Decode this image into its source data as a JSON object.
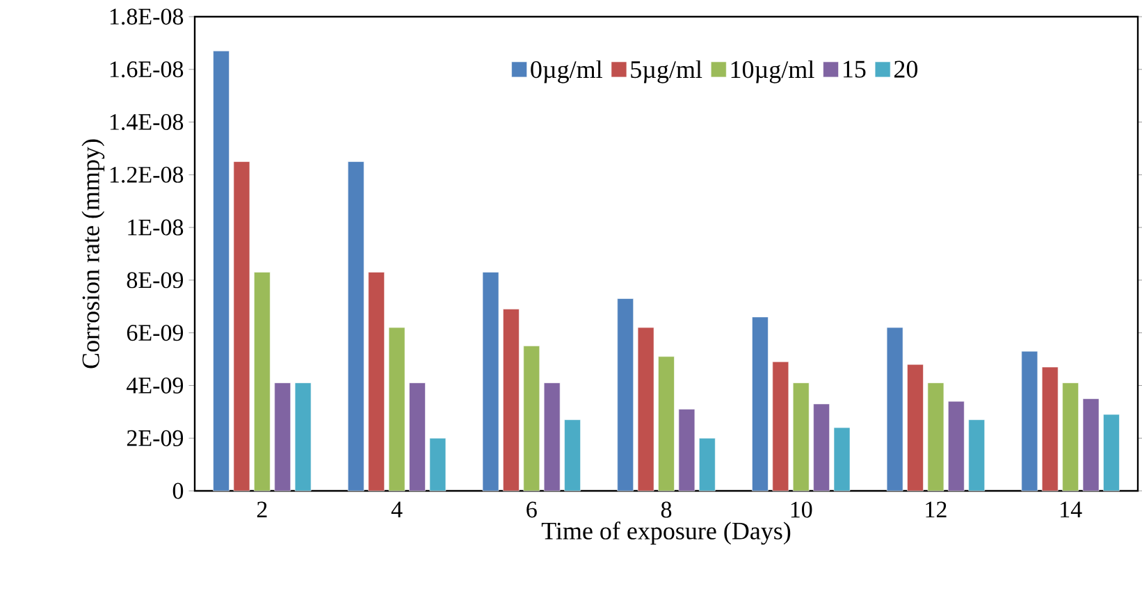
{
  "chart_data": {
    "type": "bar",
    "xlabel": "Time of exposure (Days)",
    "ylabel": "Corrosion rate (mmpy)",
    "categories": [
      "2",
      "4",
      "6",
      "8",
      "10",
      "12",
      "14"
    ],
    "series": [
      {
        "name": "0µg/ml",
        "color": "#4f81bd",
        "values": [
          1.67e-08,
          1.25e-08,
          8.3e-09,
          7.3e-09,
          6.6e-09,
          6.2e-09,
          5.3e-09
        ]
      },
      {
        "name": "5µg/ml",
        "color": "#c0504d",
        "values": [
          1.25e-08,
          8.3e-09,
          6.9e-09,
          6.2e-09,
          4.9e-09,
          4.8e-09,
          4.7e-09
        ]
      },
      {
        "name": "10µg/ml",
        "color": "#9bbb59",
        "values": [
          8.3e-09,
          6.2e-09,
          5.5e-09,
          5.1e-09,
          4.1e-09,
          4.1e-09,
          4.1e-09
        ]
      },
      {
        "name": "15",
        "color": "#8064a2",
        "values": [
          4.1e-09,
          4.1e-09,
          4.1e-09,
          3.1e-09,
          3.3e-09,
          3.4e-09,
          3.5e-09
        ]
      },
      {
        "name": "20",
        "color": "#4bacc6",
        "values": [
          4.1e-09,
          2e-09,
          2.7e-09,
          2e-09,
          2.4e-09,
          2.7e-09,
          2.9e-09
        ]
      }
    ],
    "ylim": [
      0,
      1.8e-08
    ],
    "yticks": [
      0,
      {
        "value": 2e-09,
        "label": "2E-09"
      },
      {
        "value": 4e-09,
        "label": "4E-09"
      },
      {
        "value": 6e-09,
        "label": "6E-09"
      },
      {
        "value": 8e-09,
        "label": "8E-09"
      },
      {
        "value": 1e-08,
        "label": "1E-08"
      },
      {
        "value": 1.2e-08,
        "label": "1.2E-08"
      },
      {
        "value": 1.4e-08,
        "label": "1.4E-08"
      },
      {
        "value": 1.6e-08,
        "label": "1.6E-08"
      },
      {
        "value": 1.8e-08,
        "label": "1.8E-08"
      }
    ],
    "legend": "top",
    "grid": false
  }
}
